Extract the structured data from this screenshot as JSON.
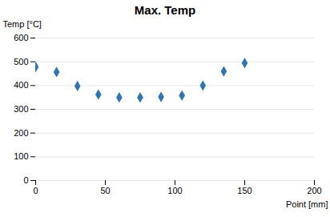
{
  "chart_data": {
    "type": "scatter",
    "title": "Max. Temp",
    "xlabel": "Point [mm]",
    "ylabel": "Temp [°C]",
    "x": [
      0,
      15,
      30,
      45,
      60,
      75,
      90,
      105,
      120,
      135,
      150
    ],
    "values": [
      478,
      457,
      398,
      362,
      350,
      350,
      352,
      358,
      400,
      460,
      495
    ],
    "color": "#2e75b6",
    "marker": "diamond",
    "xlim": [
      0,
      200
    ],
    "ylim": [
      0,
      600
    ],
    "xticks": [
      0,
      50,
      100,
      150,
      200
    ],
    "yticks": [
      0,
      100,
      200,
      300,
      400,
      500,
      600
    ],
    "grid": "y"
  }
}
